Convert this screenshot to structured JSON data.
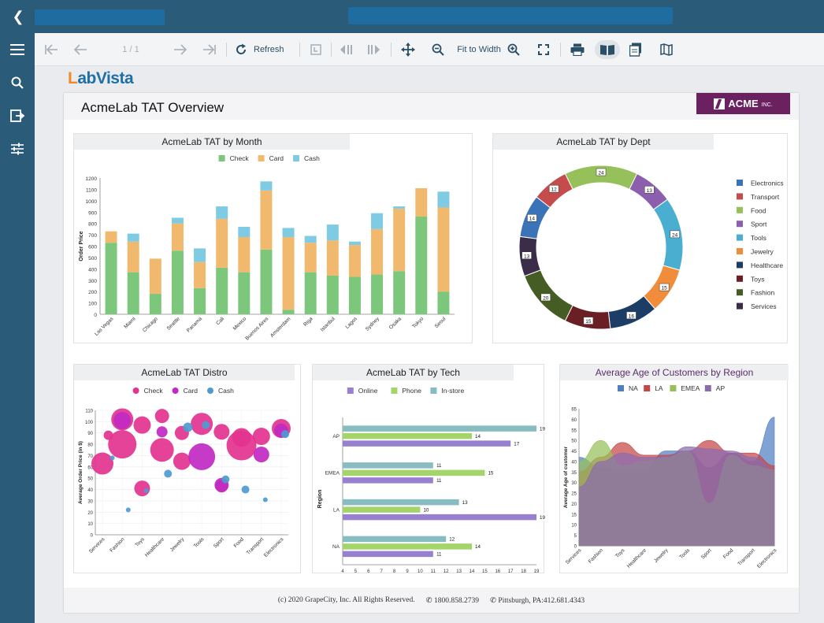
{
  "toolbar": {
    "page_indicator": "1 / 1",
    "refresh_label": "Refresh",
    "fit_label": "Fit to Width"
  },
  "logo": {
    "part1": "L",
    "part2": "ab",
    "part3": "Vista"
  },
  "report": {
    "title": "AcmeLab TAT Overview",
    "brand": "ACME",
    "brand_suffix": "INC.",
    "footer_copyright": "(c) 2020 GrapeCity, Inc. All Rights Reserved.",
    "footer_phone": "1800.858.2739",
    "footer_pittsburgh": "Pittsburgh, PA:412.681.4343"
  },
  "colors": {
    "check": "#7dc77c",
    "card": "#f1b96e",
    "cash": "#7fcbe3",
    "navy": "#2a5b78"
  },
  "chart_data": [
    {
      "type": "bar",
      "stacked": true,
      "title": "AcmeLab TAT by Month",
      "ylabel": "Order Price",
      "ylim": [
        0,
        1200
      ],
      "yticks": [
        0,
        100,
        200,
        300,
        400,
        500,
        600,
        700,
        800,
        900,
        1000,
        1100,
        1200
      ],
      "legend_position": "top",
      "categories": [
        "Las Vegas",
        "Miami",
        "Chicago",
        "Seattle",
        "Panama",
        "Cali",
        "Mexico",
        "Buenos Aires",
        "Amsterdam",
        "Riga",
        "Istanbul",
        "Lagos",
        "Sydney",
        "Osaka",
        "Tokyo",
        "Seoul"
      ],
      "series": [
        {
          "name": "Check",
          "values": [
            630,
            370,
            180,
            560,
            230,
            410,
            370,
            570,
            40,
            370,
            340,
            330,
            350,
            380,
            860,
            200
          ]
        },
        {
          "name": "Card",
          "values": [
            100,
            270,
            310,
            240,
            230,
            430,
            310,
            520,
            640,
            260,
            310,
            280,
            400,
            550,
            250,
            740
          ]
        },
        {
          "name": "Cash",
          "values": [
            0,
            70,
            0,
            50,
            120,
            110,
            90,
            80,
            80,
            60,
            140,
            30,
            140,
            20,
            0,
            140
          ]
        }
      ]
    },
    {
      "type": "pie",
      "donut": true,
      "title": "AcmeLab TAT by Dept",
      "legend_position": "right",
      "slices": [
        {
          "name": "Electronics",
          "value": 14,
          "color": "#3b73b9"
        },
        {
          "name": "Transport",
          "value": 12,
          "color": "#c44c4c"
        },
        {
          "name": "Food",
          "value": 24,
          "color": "#95c05a"
        },
        {
          "name": "Sport",
          "value": 13,
          "color": "#8b5fae"
        },
        {
          "name": "Tools",
          "value": 24,
          "color": "#4aaed0"
        },
        {
          "name": "Jewelry",
          "value": 15,
          "color": "#f08c3a"
        },
        {
          "name": "Healthcare",
          "value": 16,
          "color": "#1c3e66"
        },
        {
          "name": "Toys",
          "value": 15,
          "color": "#6a1f25"
        },
        {
          "name": "Fashion",
          "value": 20,
          "color": "#455d24"
        },
        {
          "name": "Services",
          "value": 13,
          "color": "#3b2c4a"
        }
      ]
    },
    {
      "type": "scatter",
      "bubble": true,
      "title": "AcmeLab TAT Distro",
      "ylabel": "Average Order Price (in $)",
      "ylim": [
        0,
        110
      ],
      "yticks": [
        0,
        10,
        20,
        30,
        40,
        50,
        60,
        70,
        80,
        90,
        100,
        110
      ],
      "legend_position": "top",
      "categories": [
        "Services",
        "Fashion",
        "Toys",
        "Healthcare",
        "Jewelry",
        "Tools",
        "Sport",
        "Food",
        "Transport",
        "Electronics"
      ],
      "series": [
        {
          "name": "Check",
          "color": "#e3338f",
          "points": [
            [
              0,
              63,
              14
            ],
            [
              0.3,
              88,
              6
            ],
            [
              1,
              80,
              18
            ],
            [
              1,
              102,
              14
            ],
            [
              2,
              97,
              11
            ],
            [
              2,
              41,
              10
            ],
            [
              3,
              75,
              15
            ],
            [
              3,
              105,
              9
            ],
            [
              4,
              65,
              11
            ],
            [
              4,
              90,
              9
            ],
            [
              5,
              98,
              14
            ],
            [
              6,
              91,
              10
            ],
            [
              6,
              43,
              8
            ],
            [
              7,
              79,
              19
            ],
            [
              7,
              86,
              12
            ],
            [
              8,
              87,
              11
            ],
            [
              9,
              94,
              12
            ]
          ]
        },
        {
          "name": "Card",
          "color": "#c02ac2",
          "points": [
            [
              1,
              101,
              11
            ],
            [
              5,
              69,
              17
            ],
            [
              6,
              44,
              9
            ],
            [
              8,
              71,
              10
            ],
            [
              9,
              92,
              9
            ],
            [
              3,
              91,
              7
            ]
          ]
        },
        {
          "name": "Cash",
          "color": "#4d9bd0",
          "points": [
            [
              0.5,
              68,
              3
            ],
            [
              1.3,
              22,
              3
            ],
            [
              2.2,
              39,
              3
            ],
            [
              3.3,
              54,
              5
            ],
            [
              4.3,
              95,
              6
            ],
            [
              5.2,
              97,
              5
            ],
            [
              6.2,
              49,
              5
            ],
            [
              7.2,
              40,
              5
            ],
            [
              8.2,
              31,
              3
            ],
            [
              9.2,
              89,
              5
            ]
          ]
        }
      ]
    },
    {
      "type": "bar",
      "orientation": "horizontal",
      "title": "AcmeLab TAT by Tech",
      "ylabel": "Region",
      "xlim": [
        4,
        19
      ],
      "xticks": [
        4,
        5,
        6,
        7,
        8,
        9,
        10,
        11,
        12,
        13,
        14,
        15,
        16,
        17,
        18,
        19
      ],
      "legend_position": "top",
      "categories": [
        "AP",
        "EMEA",
        "LA",
        "NA"
      ],
      "series": [
        {
          "name": "Online",
          "color": "#9680cf",
          "values": [
            17,
            11,
            19,
            11
          ]
        },
        {
          "name": "Phone",
          "color": "#a3d56b",
          "values": [
            14,
            15,
            10,
            14
          ]
        },
        {
          "name": "In-store",
          "color": "#87bdc0",
          "values": [
            19,
            11,
            13,
            12
          ]
        }
      ]
    },
    {
      "type": "area",
      "title": "Average Age of Customers by Region",
      "ylabel": "Average Age of customer",
      "ylim": [
        0,
        65
      ],
      "yticks": [
        0,
        5,
        10,
        15,
        20,
        25,
        30,
        35,
        40,
        45,
        50,
        55,
        60,
        65
      ],
      "legend_position": "top",
      "categories": [
        "Services",
        "Fashion",
        "Toys",
        "Healthcare",
        "Jewelry",
        "Tools",
        "Sport",
        "Food",
        "Transport",
        "Electronics"
      ],
      "series": [
        {
          "name": "NA",
          "color": "#4f7fc2",
          "values": [
            42,
            37,
            36,
            36,
            45,
            45,
            37,
            44,
            40,
            61
          ]
        },
        {
          "name": "LA",
          "color": "#c64545",
          "values": [
            35,
            42,
            49,
            43,
            43,
            45,
            50,
            44,
            44,
            38
          ]
        },
        {
          "name": "EMEA",
          "color": "#95c05a",
          "values": [
            40,
            50,
            38,
            40,
            42,
            45,
            20,
            43,
            38,
            36
          ]
        },
        {
          "name": "AP",
          "color": "#8a6bb0",
          "values": [
            28,
            40,
            44,
            42,
            42,
            47,
            46,
            45,
            42,
            36
          ]
        }
      ]
    }
  ]
}
